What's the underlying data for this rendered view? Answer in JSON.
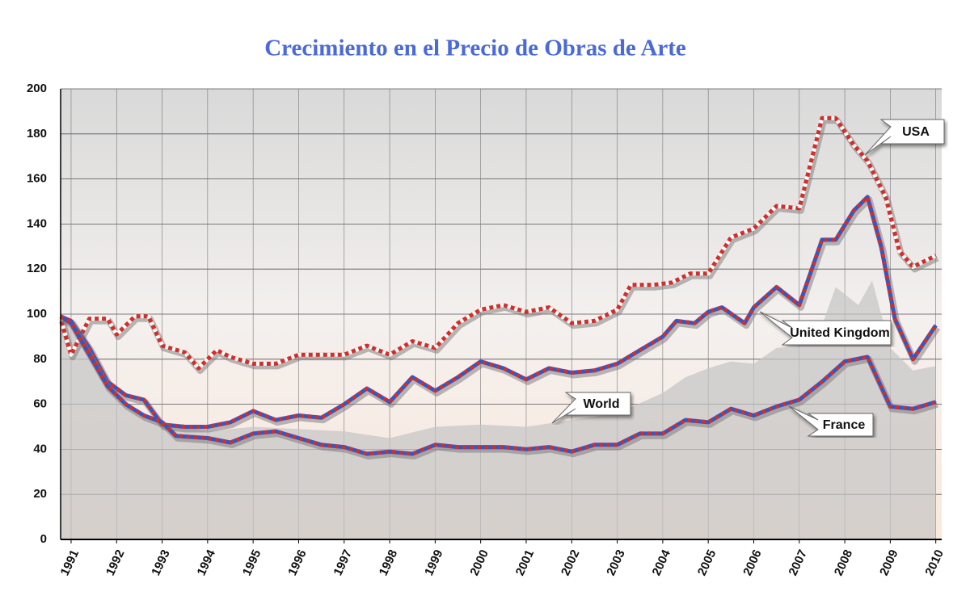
{
  "chart_data": {
    "type": "line",
    "title": "Crecimiento en el Precio de Obras de Arte",
    "xlim": [
      1990.77,
      2010.13
    ],
    "xticks": [
      1991,
      1992,
      1993,
      1994,
      1995,
      1996,
      1997,
      1998,
      1999,
      2000,
      2001,
      2002,
      2003,
      2004,
      2005,
      2006,
      2007,
      2008,
      2009,
      2010
    ],
    "ylim": [
      0,
      200
    ],
    "yticks": [
      0,
      20,
      40,
      60,
      80,
      100,
      120,
      140,
      160,
      180,
      200
    ],
    "grid": true,
    "series": [
      {
        "name": "World",
        "color": "#c4c4c4",
        "area": true,
        "x": [
          1990.77,
          1991.4,
          1992,
          1993,
          1994,
          1995,
          1996,
          1997,
          1998,
          1999,
          2000,
          2001,
          2002,
          2003,
          2004,
          2004.5,
          2005,
          2005.5,
          2006,
          2006.5,
          2007,
          2007.5,
          2007.8,
          2008.3,
          2008.6,
          2009,
          2009.5,
          2010
        ],
        "values": [
          99,
          84,
          62,
          52,
          48,
          50,
          49,
          48,
          45,
          50,
          51,
          50,
          53,
          56,
          65,
          72,
          76,
          79,
          78,
          85,
          86,
          95,
          112,
          104,
          115,
          85,
          75,
          77
        ]
      },
      {
        "name": "USA",
        "color": "#d42e2a",
        "x": [
          1990.77,
          1991,
          1991.4,
          1991.8,
          1992,
          1992.4,
          1992.7,
          1993,
          1993.5,
          1993.8,
          1994.2,
          1994.5,
          1995,
          1995.5,
          1996,
          1996.5,
          1997,
          1997.5,
          1998,
          1998.5,
          1999,
          1999.5,
          2000,
          2000.5,
          2001,
          2001.5,
          2002,
          2002.5,
          2003,
          2003.3,
          2003.8,
          2004.2,
          2004.6,
          2005,
          2005.5,
          2006,
          2006.5,
          2007,
          2007.5,
          2007.8,
          2008.2,
          2008.5,
          2008.9,
          2009.2,
          2009.5,
          2010
        ],
        "values": [
          98,
          82,
          98,
          98,
          91,
          99,
          99,
          86,
          83,
          76,
          84,
          81,
          78,
          78,
          82,
          82,
          82,
          86,
          82,
          88,
          85,
          96,
          102,
          104,
          101,
          103,
          96,
          97,
          102,
          113,
          113,
          114,
          118,
          118,
          134,
          138,
          148,
          147,
          187,
          187,
          175,
          168,
          152,
          128,
          121,
          126
        ]
      },
      {
        "name": "United Kingdom",
        "color": "#3556c4",
        "x": [
          1990.77,
          1991,
          1991.4,
          1991.8,
          1992.2,
          1992.6,
          1993,
          1993.5,
          1994,
          1994.5,
          1995,
          1995.5,
          1996,
          1996.5,
          1997,
          1997.5,
          1998,
          1998.5,
          1999,
          1999.5,
          2000,
          2000.5,
          2001,
          2001.5,
          2002,
          2002.5,
          2003,
          2003.5,
          2004,
          2004.3,
          2004.7,
          2005,
          2005.3,
          2005.8,
          2006,
          2006.5,
          2007,
          2007.5,
          2007.8,
          2008.2,
          2008.5,
          2008.8,
          2009.1,
          2009.5,
          2010
        ],
        "values": [
          99,
          97,
          85,
          70,
          64,
          62,
          51,
          50,
          50,
          52,
          57,
          53,
          55,
          54,
          60,
          67,
          61,
          72,
          66,
          72,
          79,
          76,
          71,
          76,
          74,
          75,
          78,
          84,
          90,
          97,
          96,
          101,
          103,
          96,
          103,
          112,
          104,
          133,
          133,
          146,
          152,
          130,
          98,
          80,
          95
        ]
      },
      {
        "name": "France",
        "color": "#3556c4",
        "x": [
          1990.77,
          1991,
          1991.4,
          1991.8,
          1992.2,
          1992.6,
          1993,
          1993.3,
          1994,
          1994.5,
          1995,
          1995.5,
          1996,
          1996.5,
          1997,
          1997.5,
          1998,
          1998.5,
          1999,
          1999.5,
          2000,
          2000.5,
          2001,
          2001.5,
          2002,
          2002.5,
          2003,
          2003.5,
          2004,
          2004.5,
          2005,
          2005.5,
          2006,
          2006.5,
          2007,
          2007.5,
          2008,
          2008.5,
          2009,
          2009.5,
          2010
        ],
        "values": [
          99,
          96,
          82,
          68,
          60,
          55,
          52,
          46,
          45,
          43,
          47,
          48,
          45,
          42,
          41,
          38,
          39,
          38,
          42,
          41,
          41,
          41,
          40,
          41,
          39,
          42,
          42,
          47,
          47,
          53,
          52,
          58,
          55,
          59,
          62,
          70,
          79,
          81,
          59,
          58,
          61
        ]
      }
    ]
  }
}
